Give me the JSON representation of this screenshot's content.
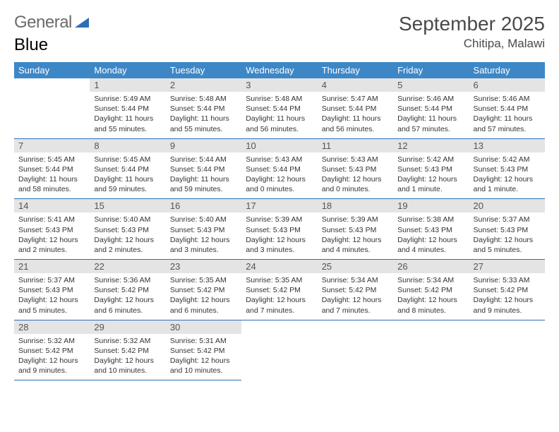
{
  "logo": {
    "part1": "General",
    "part2": "Blue"
  },
  "title": "September 2025",
  "location": "Chitipa, Malawi",
  "colors": {
    "header_bg": "#3d87c7",
    "header_text": "#ffffff",
    "border": "#2d6fb5",
    "daynum_bg": "#e4e4e4",
    "logo_gray": "#6b6b6b",
    "logo_blue": "#2d6fb5"
  },
  "day_headers": [
    "Sunday",
    "Monday",
    "Tuesday",
    "Wednesday",
    "Thursday",
    "Friday",
    "Saturday"
  ],
  "weeks": [
    [
      {
        "blank": true
      },
      {
        "n": "1",
        "sunrise": "Sunrise: 5:49 AM",
        "sunset": "Sunset: 5:44 PM",
        "dl1": "Daylight: 11 hours",
        "dl2": "and 55 minutes."
      },
      {
        "n": "2",
        "sunrise": "Sunrise: 5:48 AM",
        "sunset": "Sunset: 5:44 PM",
        "dl1": "Daylight: 11 hours",
        "dl2": "and 55 minutes."
      },
      {
        "n": "3",
        "sunrise": "Sunrise: 5:48 AM",
        "sunset": "Sunset: 5:44 PM",
        "dl1": "Daylight: 11 hours",
        "dl2": "and 56 minutes."
      },
      {
        "n": "4",
        "sunrise": "Sunrise: 5:47 AM",
        "sunset": "Sunset: 5:44 PM",
        "dl1": "Daylight: 11 hours",
        "dl2": "and 56 minutes."
      },
      {
        "n": "5",
        "sunrise": "Sunrise: 5:46 AM",
        "sunset": "Sunset: 5:44 PM",
        "dl1": "Daylight: 11 hours",
        "dl2": "and 57 minutes."
      },
      {
        "n": "6",
        "sunrise": "Sunrise: 5:46 AM",
        "sunset": "Sunset: 5:44 PM",
        "dl1": "Daylight: 11 hours",
        "dl2": "and 57 minutes."
      }
    ],
    [
      {
        "n": "7",
        "sunrise": "Sunrise: 5:45 AM",
        "sunset": "Sunset: 5:44 PM",
        "dl1": "Daylight: 11 hours",
        "dl2": "and 58 minutes."
      },
      {
        "n": "8",
        "sunrise": "Sunrise: 5:45 AM",
        "sunset": "Sunset: 5:44 PM",
        "dl1": "Daylight: 11 hours",
        "dl2": "and 59 minutes."
      },
      {
        "n": "9",
        "sunrise": "Sunrise: 5:44 AM",
        "sunset": "Sunset: 5:44 PM",
        "dl1": "Daylight: 11 hours",
        "dl2": "and 59 minutes."
      },
      {
        "n": "10",
        "sunrise": "Sunrise: 5:43 AM",
        "sunset": "Sunset: 5:44 PM",
        "dl1": "Daylight: 12 hours",
        "dl2": "and 0 minutes."
      },
      {
        "n": "11",
        "sunrise": "Sunrise: 5:43 AM",
        "sunset": "Sunset: 5:43 PM",
        "dl1": "Daylight: 12 hours",
        "dl2": "and 0 minutes."
      },
      {
        "n": "12",
        "sunrise": "Sunrise: 5:42 AM",
        "sunset": "Sunset: 5:43 PM",
        "dl1": "Daylight: 12 hours",
        "dl2": "and 1 minute."
      },
      {
        "n": "13",
        "sunrise": "Sunrise: 5:42 AM",
        "sunset": "Sunset: 5:43 PM",
        "dl1": "Daylight: 12 hours",
        "dl2": "and 1 minute."
      }
    ],
    [
      {
        "n": "14",
        "sunrise": "Sunrise: 5:41 AM",
        "sunset": "Sunset: 5:43 PM",
        "dl1": "Daylight: 12 hours",
        "dl2": "and 2 minutes."
      },
      {
        "n": "15",
        "sunrise": "Sunrise: 5:40 AM",
        "sunset": "Sunset: 5:43 PM",
        "dl1": "Daylight: 12 hours",
        "dl2": "and 2 minutes."
      },
      {
        "n": "16",
        "sunrise": "Sunrise: 5:40 AM",
        "sunset": "Sunset: 5:43 PM",
        "dl1": "Daylight: 12 hours",
        "dl2": "and 3 minutes."
      },
      {
        "n": "17",
        "sunrise": "Sunrise: 5:39 AM",
        "sunset": "Sunset: 5:43 PM",
        "dl1": "Daylight: 12 hours",
        "dl2": "and 3 minutes."
      },
      {
        "n": "18",
        "sunrise": "Sunrise: 5:39 AM",
        "sunset": "Sunset: 5:43 PM",
        "dl1": "Daylight: 12 hours",
        "dl2": "and 4 minutes."
      },
      {
        "n": "19",
        "sunrise": "Sunrise: 5:38 AM",
        "sunset": "Sunset: 5:43 PM",
        "dl1": "Daylight: 12 hours",
        "dl2": "and 4 minutes."
      },
      {
        "n": "20",
        "sunrise": "Sunrise: 5:37 AM",
        "sunset": "Sunset: 5:43 PM",
        "dl1": "Daylight: 12 hours",
        "dl2": "and 5 minutes."
      }
    ],
    [
      {
        "n": "21",
        "sunrise": "Sunrise: 5:37 AM",
        "sunset": "Sunset: 5:43 PM",
        "dl1": "Daylight: 12 hours",
        "dl2": "and 5 minutes."
      },
      {
        "n": "22",
        "sunrise": "Sunrise: 5:36 AM",
        "sunset": "Sunset: 5:42 PM",
        "dl1": "Daylight: 12 hours",
        "dl2": "and 6 minutes."
      },
      {
        "n": "23",
        "sunrise": "Sunrise: 5:35 AM",
        "sunset": "Sunset: 5:42 PM",
        "dl1": "Daylight: 12 hours",
        "dl2": "and 6 minutes."
      },
      {
        "n": "24",
        "sunrise": "Sunrise: 5:35 AM",
        "sunset": "Sunset: 5:42 PM",
        "dl1": "Daylight: 12 hours",
        "dl2": "and 7 minutes."
      },
      {
        "n": "25",
        "sunrise": "Sunrise: 5:34 AM",
        "sunset": "Sunset: 5:42 PM",
        "dl1": "Daylight: 12 hours",
        "dl2": "and 7 minutes."
      },
      {
        "n": "26",
        "sunrise": "Sunrise: 5:34 AM",
        "sunset": "Sunset: 5:42 PM",
        "dl1": "Daylight: 12 hours",
        "dl2": "and 8 minutes."
      },
      {
        "n": "27",
        "sunrise": "Sunrise: 5:33 AM",
        "sunset": "Sunset: 5:42 PM",
        "dl1": "Daylight: 12 hours",
        "dl2": "and 9 minutes."
      }
    ],
    [
      {
        "n": "28",
        "sunrise": "Sunrise: 5:32 AM",
        "sunset": "Sunset: 5:42 PM",
        "dl1": "Daylight: 12 hours",
        "dl2": "and 9 minutes."
      },
      {
        "n": "29",
        "sunrise": "Sunrise: 5:32 AM",
        "sunset": "Sunset: 5:42 PM",
        "dl1": "Daylight: 12 hours",
        "dl2": "and 10 minutes."
      },
      {
        "n": "30",
        "sunrise": "Sunrise: 5:31 AM",
        "sunset": "Sunset: 5:42 PM",
        "dl1": "Daylight: 12 hours",
        "dl2": "and 10 minutes."
      },
      {
        "blank": true
      },
      {
        "blank": true
      },
      {
        "blank": true
      },
      {
        "blank": true
      }
    ]
  ]
}
